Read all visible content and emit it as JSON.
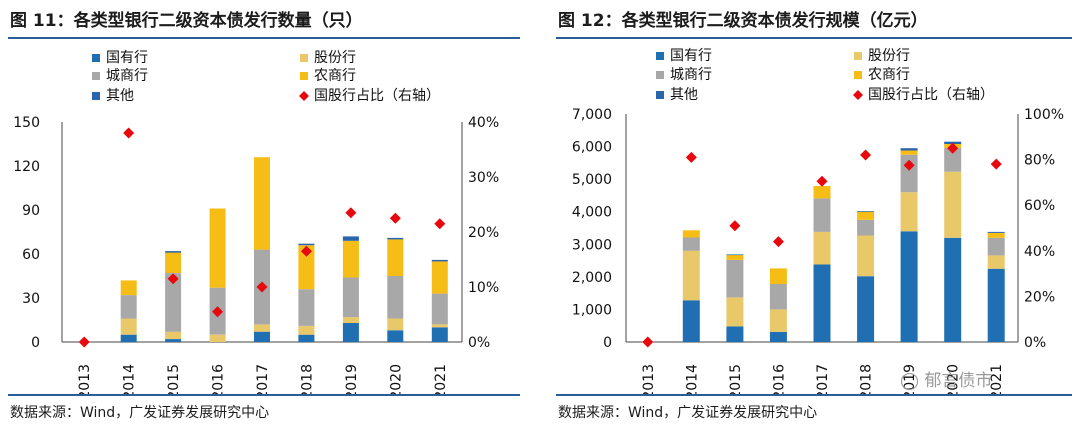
{
  "source_text": "数据来源：Wind，广发证券发展研究中心",
  "watermark": "郁言债市",
  "colors": {
    "state_owned": "#1f6fb2",
    "joint_stock": "#e9c86a",
    "city_commercial": "#a8a8a8",
    "rural_commercial": "#f6bd16",
    "other": "#2a64ad",
    "share_marker": "#e8070c",
    "frame": "#2b5d9a"
  },
  "chart_data": [
    {
      "type": "bar",
      "stacked": true,
      "title": "图 11：各类型银行二级资本债发行数量（只）",
      "categories": [
        "2013",
        "2014",
        "2015",
        "2016",
        "2017",
        "2018",
        "2019",
        "2020",
        "2021"
      ],
      "series": [
        {
          "name": "国有行",
          "key": "state_owned",
          "values": [
            0,
            5,
            2,
            0,
            7,
            5,
            13,
            8,
            10
          ]
        },
        {
          "name": "股份行",
          "key": "joint_stock",
          "values": [
            0,
            11,
            5,
            5,
            5,
            6,
            4,
            8,
            2
          ]
        },
        {
          "name": "城商行",
          "key": "city_commercial",
          "values": [
            0,
            16,
            40,
            32,
            51,
            25,
            27,
            29,
            21
          ]
        },
        {
          "name": "农商行",
          "key": "rural_commercial",
          "values": [
            0,
            10,
            14,
            54,
            63,
            30,
            25,
            25,
            22
          ]
        },
        {
          "name": "其他",
          "key": "other",
          "values": [
            0,
            0,
            1,
            0,
            0,
            1,
            3,
            1,
            1
          ]
        }
      ],
      "line_series": {
        "name": "国股行占比（右轴）",
        "key": "share_marker",
        "marker": "diamond",
        "values": [
          0,
          38,
          11.5,
          5.5,
          10,
          16.5,
          23.5,
          22.5,
          21.5
        ]
      },
      "ylim": [
        0,
        150
      ],
      "yticks": [
        "0",
        "30",
        "60",
        "90",
        "120",
        "150"
      ],
      "y2lim": [
        0,
        40
      ],
      "y2ticks": [
        "0%",
        "10%",
        "20%",
        "30%",
        "40%"
      ],
      "legend_position": "top"
    },
    {
      "type": "bar",
      "stacked": true,
      "title": "图 12：各类型银行二级资本债发行规模（亿元）",
      "categories": [
        "2013",
        "2014",
        "2015",
        "2016",
        "2017",
        "2018",
        "2019",
        "2020",
        "2021"
      ],
      "series": [
        {
          "name": "国有行",
          "key": "state_owned",
          "values": [
            0,
            1280,
            480,
            310,
            2380,
            2020,
            3400,
            3200,
            2250
          ]
        },
        {
          "name": "股份行",
          "key": "joint_stock",
          "values": [
            0,
            1520,
            890,
            690,
            1000,
            1250,
            1200,
            2030,
            410
          ]
        },
        {
          "name": "城商行",
          "key": "city_commercial",
          "values": [
            0,
            410,
            1150,
            780,
            1030,
            480,
            1150,
            730,
            540
          ]
        },
        {
          "name": "农商行",
          "key": "rural_commercial",
          "values": [
            0,
            220,
            150,
            480,
            380,
            250,
            130,
            120,
            150
          ]
        },
        {
          "name": "其他",
          "key": "other",
          "values": [
            0,
            0,
            20,
            0,
            0,
            20,
            70,
            70,
            30
          ]
        }
      ],
      "line_series": {
        "name": "国股行占比（右轴）",
        "key": "share_marker",
        "marker": "diamond",
        "values": [
          0,
          81,
          51,
          44,
          70.5,
          82,
          77.5,
          85,
          78
        ]
      },
      "ylim": [
        0,
        7000
      ],
      "yticks": [
        "0",
        "1,000",
        "2,000",
        "3,000",
        "4,000",
        "5,000",
        "6,000",
        "7,000"
      ],
      "y2lim": [
        0,
        100
      ],
      "y2ticks": [
        "0%",
        "20%",
        "40%",
        "60%",
        "80%",
        "100%"
      ],
      "legend_position": "top"
    }
  ]
}
